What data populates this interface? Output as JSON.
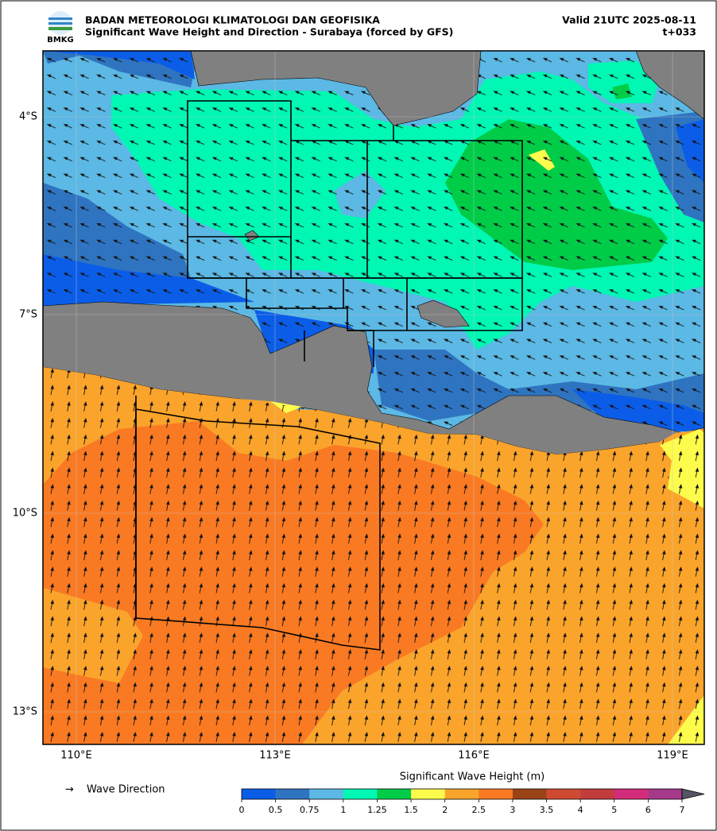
{
  "header": {
    "agency": "BADAN METEOROLOGI KLIMATOLOGI DAN GEOFISIKA",
    "subtitle": "Significant Wave Height and Direction - Surabaya (forced by GFS)",
    "valid": "Valid 21UTC 2025-08-11",
    "lead": "t+033",
    "logo": "BMKG"
  },
  "map": {
    "lon_labels": [
      "110°E",
      "113°E",
      "116°E",
      "119°E"
    ],
    "lat_labels": [
      "4°S",
      "7°S",
      "10°S",
      "13°S"
    ]
  },
  "legend": {
    "arrow": "→",
    "label": "Wave Direction"
  },
  "colorbar": {
    "title": "Significant Wave Height (m)",
    "ticks": [
      0,
      0.5,
      0.75,
      1,
      1.25,
      1.5,
      2,
      2.5,
      3,
      3.5,
      4,
      5,
      6,
      7
    ],
    "colors": [
      "#0b5de8",
      "#2f74c0",
      "#5cb8e4",
      "#00f7b4",
      "#00cc48",
      "#fdfc4c",
      "#fba42c",
      "#f97a23",
      "#9a4316",
      "#d04a32",
      "#c23c3c",
      "#d42c7c",
      "#a63a8a"
    ],
    "extend_color": "#555566"
  }
}
